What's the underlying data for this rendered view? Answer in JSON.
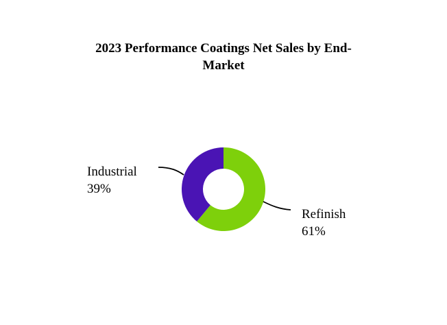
{
  "title_line1": "2023 Performance Coatings Net Sales by End-",
  "title_line2": "Market",
  "chart_data": {
    "type": "pie",
    "style": "donut",
    "title": "2023 Performance Coatings Net Sales by End-Market",
    "slices": [
      {
        "label": "Refinish",
        "value": 61,
        "value_label": "61%",
        "color": "#7ed00b"
      },
      {
        "label": "Industrial",
        "value": 39,
        "value_label": "39%",
        "color": "#4a14b4"
      }
    ],
    "legend": "none"
  }
}
